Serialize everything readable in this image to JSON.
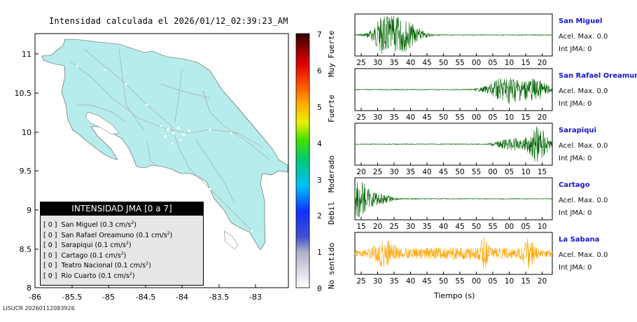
{
  "map": {
    "title": "Intensidad calculada el 2026/01/12_02:39:23_AM",
    "x_ticks": [
      "-86",
      "-85.5",
      "-85",
      "-84.5",
      "-84",
      "-83.5",
      "-83"
    ],
    "y_ticks": [
      "11",
      "10.5",
      "10",
      "9.5",
      "9",
      "8.5",
      "8"
    ],
    "colorbar_ticks": [
      "7",
      "6",
      "5",
      "4",
      "3",
      "2",
      "1",
      "0"
    ],
    "colorbar_labels": [
      "Muy Fuerte",
      "Fuerte",
      "Moderado",
      "Debil",
      "No sentido"
    ],
    "land_color": "#b6ecec",
    "sea_color": "#ffffff"
  },
  "legend": {
    "title": "INTENSIDAD JMA [0 a 7]",
    "rows": [
      {
        "value": "[ 0 ]",
        "name": "San Miguel",
        "accel": "(0.3 cm/s",
        "exp": "2",
        "close": ")"
      },
      {
        "value": "[ 0 ]",
        "name": "San Rafael Oreamuno",
        "accel": "(0.1 cm/s",
        "exp": "2",
        "close": ")"
      },
      {
        "value": "[ 0 ]",
        "name": "Sarapiqui",
        "accel": "(0.1 cm/s",
        "exp": "2",
        "close": ")"
      },
      {
        "value": "[ 0 ]",
        "name": "Cartago",
        "accel": "(0.1 cm/s",
        "exp": "2",
        "close": ")"
      },
      {
        "value": "[ 0 ]",
        "name": "Teatro Nacional",
        "accel": "(0.1 cm/s",
        "exp": "2",
        "close": ")"
      },
      {
        "value": "[ 0 ]",
        "name": "Rio Cuarto",
        "accel": "(0.1 cm/s",
        "exp": "2",
        "close": ")"
      }
    ]
  },
  "footer_id": "LISUCR 20260112083926",
  "chart_data": {
    "type": "line",
    "xlabel": "Tiempo (s)",
    "series": [
      {
        "name": "San Miguel",
        "accel_text": "Acel. Max. 0.0",
        "int_text": "Int JMA: 0",
        "color": "#006400",
        "x_ticks": [
          "25",
          "30",
          "35",
          "40",
          "45",
          "50",
          "55",
          "00",
          "05",
          "10",
          "15",
          "20"
        ]
      },
      {
        "name": "San Rafael Oreamuno",
        "accel_text": "Acel. Max. 0.0",
        "int_text": "Int JMA: 0",
        "color": "#006400",
        "x_ticks": [
          "25",
          "30",
          "35",
          "40",
          "45",
          "50",
          "55",
          "00",
          "05",
          "10",
          "15",
          "20"
        ]
      },
      {
        "name": "Sarapiqui",
        "accel_text": "Acel. Max. 0.0",
        "int_text": "Int JMA: 0",
        "color": "#006400",
        "x_ticks": [
          "20",
          "25",
          "30",
          "35",
          "40",
          "45",
          "50",
          "55",
          "00",
          "05",
          "10",
          "15"
        ]
      },
      {
        "name": "Cartago",
        "accel_text": "Acel. Max. 0.0",
        "int_text": "Int JMA: 0",
        "color": "#006400",
        "x_ticks": [
          "15",
          "20",
          "25",
          "30",
          "35",
          "40",
          "45",
          "50",
          "55",
          "00",
          "05",
          "10"
        ]
      },
      {
        "name": "La Sabana",
        "accel_text": "Acel. Max. 0.0",
        "int_text": "Int JMA: 0",
        "color": "#ffa500",
        "x_ticks": [
          "25",
          "30",
          "35",
          "40",
          "45",
          "50",
          "55",
          "00",
          "05",
          "10",
          "15",
          "20"
        ]
      }
    ]
  }
}
